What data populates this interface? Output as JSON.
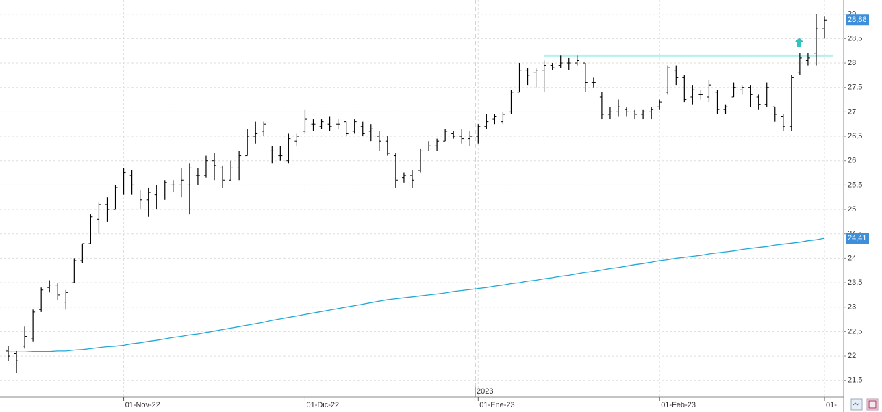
{
  "chart_data": {
    "type": "ohlc",
    "categories": [
      null,
      null,
      null,
      null,
      null,
      null,
      null,
      null,
      null,
      null,
      null,
      null,
      null,
      null,
      "01-Nov-22",
      null,
      null,
      null,
      null,
      null,
      null,
      null,
      null,
      null,
      null,
      null,
      null,
      null,
      null,
      null,
      null,
      null,
      null,
      null,
      null,
      null,
      "01-Dic-22",
      null,
      null,
      null,
      null,
      null,
      null,
      null,
      null,
      null,
      null,
      null,
      null,
      null,
      null,
      null,
      null,
      null,
      null,
      null,
      null,
      "01-Ene-23",
      null,
      null,
      null,
      null,
      null,
      null,
      null,
      null,
      null,
      null,
      null,
      null,
      null,
      null,
      null,
      null,
      null,
      null,
      null,
      null,
      null,
      "01-Feb-23",
      null,
      null,
      null,
      null,
      null,
      null,
      null,
      null,
      null,
      null,
      null,
      null,
      null,
      null,
      null,
      null,
      null,
      null,
      null,
      "01-"
    ],
    "year_label": "2023",
    "open": [
      22.1,
      22.05,
      22.2,
      22.35,
      22.95,
      23.4,
      23.45,
      23.1,
      23.5,
      23.95,
      24.3,
      24.8,
      25.1,
      25.0,
      25.4,
      25.7,
      25.4,
      25.2,
      25.3,
      25.4,
      25.5,
      25.5,
      25.5,
      25.7,
      25.7,
      26.0,
      25.85,
      25.6,
      25.85,
      26.1,
      26.5,
      26.6,
      26.2,
      26.1,
      26.0,
      26.4,
      26.6,
      26.75,
      26.7,
      26.75,
      26.75,
      26.8,
      26.6,
      26.7,
      26.6,
      26.5,
      26.4,
      26.1,
      25.65,
      25.7,
      25.8,
      26.2,
      26.3,
      26.4,
      26.55,
      26.5,
      26.45,
      26.5,
      26.7,
      26.85,
      26.8,
      27.0,
      27.4,
      27.85,
      27.8,
      27.85,
      27.95,
      27.95,
      28.0,
      28.0,
      28.0,
      27.6,
      27.3,
      26.95,
      27.0,
      27.05,
      27.0,
      26.95,
      27.0,
      27.1,
      27.4,
      27.85,
      27.7,
      27.3,
      27.35,
      27.3,
      27.4,
      27.05,
      27.3,
      27.45,
      27.5,
      27.3,
      27.15,
      27.1,
      26.9,
      26.7,
      27.8,
      28.05,
      28.2,
      28.7
    ],
    "high": [
      22.2,
      22.1,
      22.6,
      22.95,
      23.4,
      23.55,
      23.5,
      23.35,
      24.0,
      24.3,
      24.9,
      25.15,
      25.25,
      25.5,
      25.85,
      25.8,
      25.4,
      25.45,
      25.5,
      25.6,
      25.6,
      25.85,
      25.95,
      25.85,
      26.1,
      26.15,
      25.9,
      26.0,
      26.2,
      26.65,
      26.8,
      26.8,
      26.3,
      26.3,
      26.55,
      26.55,
      27.05,
      26.85,
      26.85,
      26.9,
      26.85,
      26.8,
      26.85,
      26.8,
      26.75,
      26.6,
      26.5,
      26.15,
      25.75,
      25.8,
      26.25,
      26.4,
      26.45,
      26.65,
      26.6,
      26.65,
      26.6,
      26.75,
      26.95,
      26.95,
      27.0,
      27.45,
      28.0,
      27.9,
      27.9,
      28.05,
      28.0,
      28.15,
      28.1,
      28.15,
      28.0,
      27.7,
      27.4,
      27.1,
      27.25,
      27.1,
      27.05,
      27.05,
      27.1,
      27.25,
      27.95,
      27.95,
      27.75,
      27.55,
      27.45,
      27.65,
      27.45,
      27.15,
      27.6,
      27.55,
      27.55,
      27.35,
      27.6,
      27.1,
      26.95,
      27.75,
      28.2,
      28.2,
      29.0,
      28.95
    ],
    "low": [
      21.9,
      21.65,
      22.15,
      22.3,
      22.9,
      23.3,
      23.15,
      22.95,
      23.5,
      23.9,
      24.3,
      24.5,
      24.75,
      25.0,
      25.3,
      25.3,
      25.0,
      24.85,
      25.0,
      25.2,
      25.35,
      25.25,
      24.9,
      25.5,
      25.65,
      25.6,
      25.45,
      25.6,
      25.6,
      26.1,
      26.35,
      26.5,
      25.95,
      26.0,
      25.95,
      26.3,
      26.55,
      26.6,
      26.65,
      26.6,
      26.65,
      26.5,
      26.55,
      26.5,
      26.4,
      26.2,
      26.1,
      25.45,
      25.55,
      25.45,
      25.75,
      26.2,
      26.2,
      26.4,
      26.45,
      26.35,
      26.3,
      26.35,
      26.65,
      26.75,
      26.75,
      26.95,
      27.4,
      27.55,
      27.5,
      27.4,
      27.85,
      27.9,
      27.85,
      27.95,
      27.4,
      27.5,
      26.85,
      26.85,
      26.9,
      26.9,
      26.85,
      26.85,
      26.85,
      27.05,
      27.35,
      27.55,
      27.2,
      27.15,
      27.25,
      27.2,
      26.95,
      26.95,
      27.3,
      27.35,
      27.1,
      27.05,
      27.1,
      26.8,
      26.6,
      26.6,
      27.75,
      27.95,
      27.95,
      28.5
    ],
    "close": [
      22.0,
      21.9,
      22.4,
      22.9,
      23.35,
      23.45,
      23.25,
      23.3,
      23.95,
      24.3,
      24.85,
      25.1,
      25.0,
      25.45,
      25.75,
      25.5,
      25.2,
      25.35,
      25.4,
      25.55,
      25.5,
      25.6,
      25.85,
      25.7,
      26.0,
      25.9,
      25.6,
      25.85,
      26.1,
      26.5,
      26.55,
      26.75,
      26.2,
      26.1,
      26.45,
      26.5,
      26.85,
      26.75,
      26.8,
      26.7,
      26.75,
      26.55,
      26.8,
      26.55,
      26.65,
      26.4,
      26.15,
      25.6,
      25.7,
      25.6,
      26.2,
      26.3,
      26.4,
      26.6,
      26.5,
      26.45,
      26.5,
      26.7,
      26.8,
      26.9,
      26.95,
      27.4,
      27.85,
      27.75,
      27.85,
      27.95,
      27.9,
      28.0,
      28.0,
      28.05,
      27.6,
      27.6,
      26.95,
      27.0,
      27.1,
      27.0,
      26.95,
      27.0,
      27.05,
      27.2,
      27.9,
      27.7,
      27.25,
      27.45,
      27.35,
      27.55,
      27.05,
      27.1,
      27.5,
      27.5,
      27.35,
      27.15,
      27.5,
      26.95,
      26.7,
      27.7,
      28.1,
      28.1,
      28.7,
      28.88
    ],
    "color": "#000000",
    "last_label": "28,88",
    "label_color": "#3d8fd9",
    "ma": {
      "color": "#22a8d6",
      "last_label": "24,41",
      "values": [
        22.08,
        22.08,
        22.08,
        22.09,
        22.09,
        22.09,
        22.1,
        22.1,
        22.12,
        22.13,
        22.15,
        22.17,
        22.19,
        22.2,
        22.22,
        22.25,
        22.27,
        22.3,
        22.32,
        22.35,
        22.38,
        22.4,
        22.43,
        22.45,
        22.48,
        22.51,
        22.54,
        22.57,
        22.6,
        22.63,
        22.66,
        22.69,
        22.73,
        22.76,
        22.79,
        22.82,
        22.85,
        22.88,
        22.91,
        22.94,
        22.97,
        23.0,
        23.03,
        23.06,
        23.09,
        23.12,
        23.15,
        23.17,
        23.19,
        23.21,
        23.23,
        23.25,
        23.27,
        23.29,
        23.32,
        23.34,
        23.36,
        23.38,
        23.4,
        23.43,
        23.45,
        23.48,
        23.5,
        23.53,
        23.55,
        23.58,
        23.6,
        23.63,
        23.65,
        23.68,
        23.71,
        23.73,
        23.76,
        23.79,
        23.81,
        23.84,
        23.87,
        23.89,
        23.92,
        23.95,
        23.97,
        24.0,
        24.02,
        24.04,
        24.06,
        24.09,
        24.11,
        24.13,
        24.15,
        24.18,
        24.2,
        24.22,
        24.24,
        24.27,
        24.29,
        24.31,
        24.33,
        24.36,
        24.38,
        24.41
      ]
    },
    "levels": [
      {
        "value": 28.15,
        "color": "#b5f0ee"
      }
    ],
    "ylim": [
      21.16,
      29.29
    ],
    "yticks": [
      {
        "value": 21.5,
        "label": "21,5"
      },
      22,
      {
        "value": 22.5,
        "label": "22,5"
      },
      23,
      {
        "value": 23.5,
        "label": "23,5"
      },
      24,
      {
        "value": 24.5,
        "label": "24,5"
      },
      25,
      {
        "value": 25.5,
        "label": "25,5"
      },
      26,
      {
        "value": 26.5,
        "label": "26,5"
      },
      27,
      {
        "value": 27.5,
        "label": "27,5"
      },
      28,
      {
        "value": 28.5,
        "label": "28,5"
      },
      29
    ],
    "grid": true
  }
}
